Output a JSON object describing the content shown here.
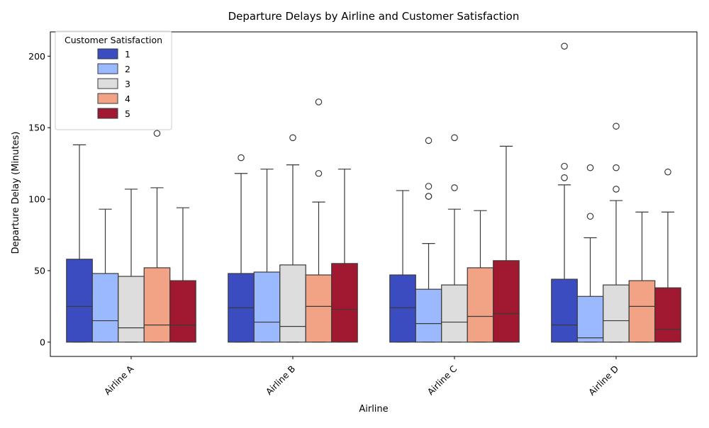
{
  "chart_data": {
    "type": "boxplot",
    "title": "Departure Delays by Airline and Customer Satisfaction",
    "xlabel": "Airline",
    "ylabel": "Departure Delay (Minutes)",
    "ylim": [
      -10,
      217
    ],
    "yticks": [
      0,
      50,
      100,
      150,
      200
    ],
    "categories": [
      "Airline A",
      "Airline B",
      "Airline C",
      "Airline D"
    ],
    "grid": false,
    "legend": {
      "title": "Customer Satisfaction",
      "placement": "top-left"
    },
    "series": [
      {
        "name": "1",
        "color": "#3b4cc0",
        "boxes": [
          {
            "min": 0,
            "q1": 0,
            "median": 25,
            "q3": 58,
            "max": 138,
            "outliers": []
          },
          {
            "min": 0,
            "q1": 0,
            "median": 24,
            "q3": 48,
            "max": 118,
            "outliers": [
              129
            ]
          },
          {
            "min": 0,
            "q1": 0,
            "median": 24,
            "q3": 47,
            "max": 106,
            "outliers": []
          },
          {
            "min": 0,
            "q1": 0,
            "median": 12,
            "q3": 44,
            "max": 110,
            "outliers": [
              115,
              123,
              207
            ]
          }
        ]
      },
      {
        "name": "2",
        "color": "#9ab9fe",
        "boxes": [
          {
            "min": 0,
            "q1": 0,
            "median": 15,
            "q3": 48,
            "max": 93,
            "outliers": []
          },
          {
            "min": 0,
            "q1": 0,
            "median": 14,
            "q3": 49,
            "max": 121,
            "outliers": []
          },
          {
            "min": 0,
            "q1": 0,
            "median": 13,
            "q3": 37,
            "max": 69,
            "outliers": [
              102,
              102,
              109,
              141
            ]
          },
          {
            "min": 0,
            "q1": 0,
            "median": 3,
            "q3": 32,
            "max": 73,
            "outliers": [
              88,
              122
            ]
          }
        ]
      },
      {
        "name": "3",
        "color": "#dddddd",
        "boxes": [
          {
            "min": 0,
            "q1": 0,
            "median": 10,
            "q3": 46,
            "max": 107,
            "outliers": []
          },
          {
            "min": 0,
            "q1": 0,
            "median": 11,
            "q3": 54,
            "max": 124,
            "outliers": [
              143
            ]
          },
          {
            "min": 0,
            "q1": 0,
            "median": 14,
            "q3": 40,
            "max": 93,
            "outliers": [
              108,
              143
            ]
          },
          {
            "min": 0,
            "q1": 0,
            "median": 15,
            "q3": 40,
            "max": 99,
            "outliers": [
              107,
              122,
              151
            ]
          }
        ]
      },
      {
        "name": "4",
        "color": "#f2a385",
        "boxes": [
          {
            "min": 0,
            "q1": 0,
            "median": 12,
            "q3": 52,
            "max": 108,
            "outliers": [
              146
            ]
          },
          {
            "min": 0,
            "q1": 0,
            "median": 25,
            "q3": 47,
            "max": 98,
            "outliers": [
              118,
              168
            ]
          },
          {
            "min": 0,
            "q1": 0,
            "median": 18,
            "q3": 52,
            "max": 92,
            "outliers": []
          },
          {
            "min": 0,
            "q1": 0,
            "median": 25,
            "q3": 43,
            "max": 91,
            "outliers": []
          }
        ]
      },
      {
        "name": "5",
        "color": "#a11831",
        "boxes": [
          {
            "min": 0,
            "q1": 0,
            "median": 12,
            "q3": 43,
            "max": 94,
            "outliers": []
          },
          {
            "min": 0,
            "q1": 0,
            "median": 23,
            "q3": 55,
            "max": 121,
            "outliers": []
          },
          {
            "min": 0,
            "q1": 0,
            "median": 20,
            "q3": 57,
            "max": 137,
            "outliers": []
          },
          {
            "min": 0,
            "q1": 0,
            "median": 9,
            "q3": 38,
            "max": 91,
            "outliers": [
              119
            ]
          }
        ]
      }
    ]
  }
}
